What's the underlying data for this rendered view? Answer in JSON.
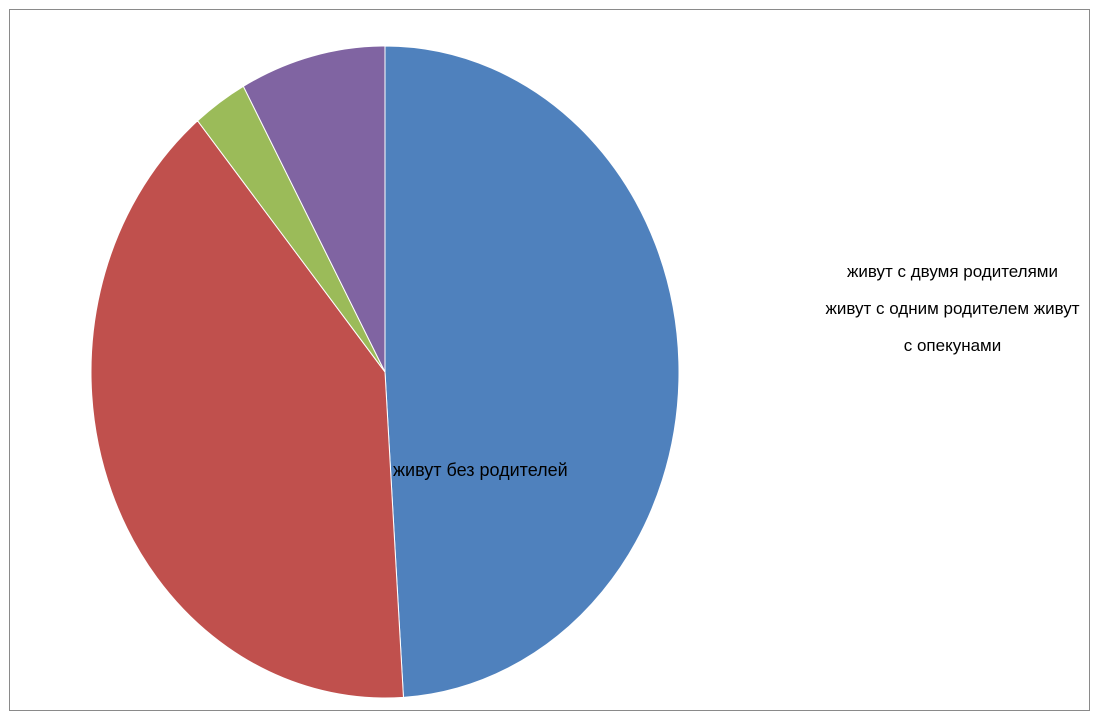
{
  "chart_data": {
    "type": "pie",
    "title": "",
    "categories": [
      "живут с двумя родителями",
      "живут с одним родителем",
      "живут с опекунами",
      "живут без родителей"
    ],
    "values": [
      49,
      40,
      3,
      8
    ],
    "colors": [
      "#4F81BD",
      "#C0504D",
      "#9BBB59",
      "#8064A2"
    ],
    "start_angle_deg": 0,
    "direction": "clockwise",
    "legend": {
      "position": "right",
      "text": "живут с двумя родителями живут с одним родителем живут с опекунами"
    },
    "slice_label": "живут без родителей"
  }
}
